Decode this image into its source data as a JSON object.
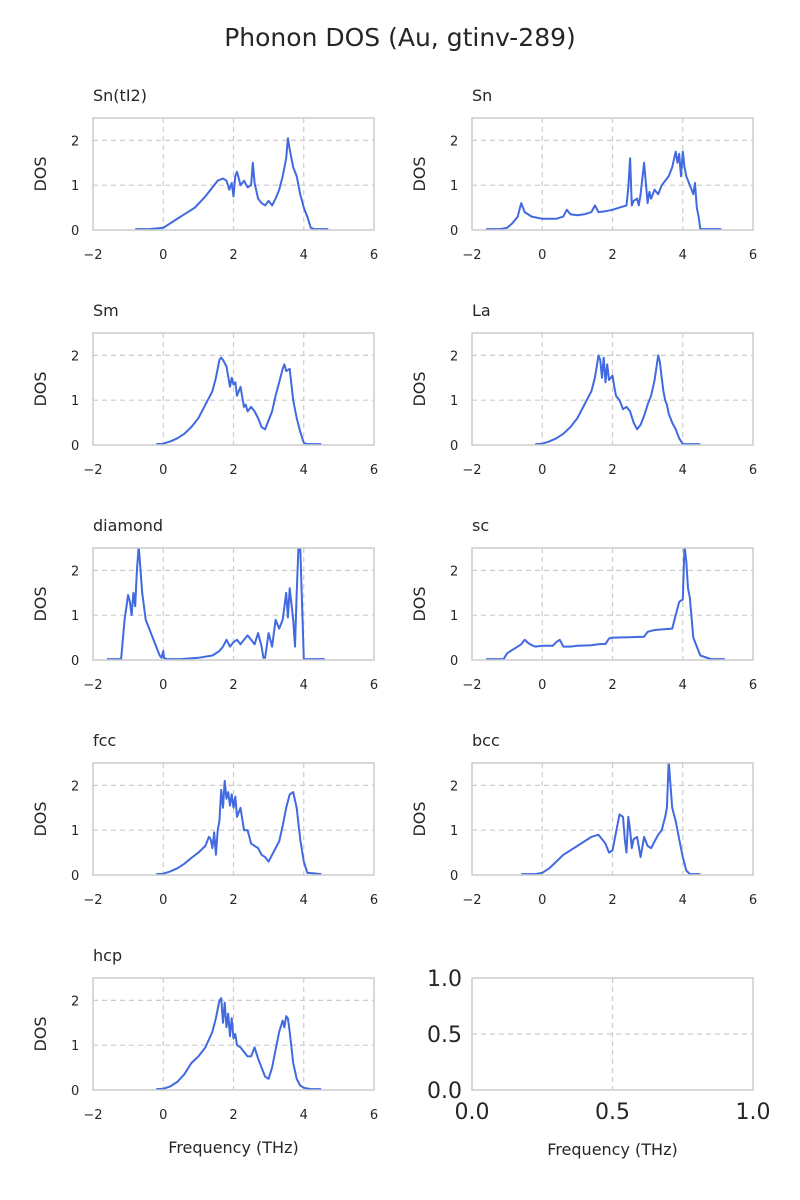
{
  "figure": {
    "title": "Phonon DOS (Au, gtinv-289)"
  },
  "colors": {
    "line": "#4169e1"
  },
  "chart_data": [
    {
      "type": "line",
      "title": "Sn(tI2)",
      "xlabel": "",
      "ylabel": "DOS",
      "xlim": [
        -2,
        6
      ],
      "ylim": [
        0,
        2.5
      ],
      "xticks": [
        -2,
        0,
        2,
        4,
        6
      ],
      "yticks": [
        0,
        1,
        2
      ],
      "grid": true,
      "series": [
        {
          "x": [
            -0.8,
            -0.4,
            0.0,
            0.3,
            0.6,
            0.9,
            1.2,
            1.4,
            1.55,
            1.7,
            1.8,
            1.88,
            1.95,
            2.0,
            2.05,
            2.1,
            2.15,
            2.2,
            2.3,
            2.4,
            2.5,
            2.55,
            2.6,
            2.7,
            2.8,
            2.9,
            3.0,
            3.1,
            3.2,
            3.3,
            3.4,
            3.5,
            3.55,
            3.6,
            3.65,
            3.7,
            3.8,
            3.9,
            4.0,
            4.1,
            4.2,
            4.3,
            4.5,
            4.7
          ],
          "y": [
            0.02,
            0.02,
            0.05,
            0.2,
            0.35,
            0.5,
            0.75,
            0.95,
            1.1,
            1.15,
            1.1,
            0.9,
            1.05,
            0.75,
            1.2,
            1.3,
            1.15,
            1.0,
            1.1,
            0.95,
            1.0,
            1.5,
            1.05,
            0.7,
            0.6,
            0.55,
            0.65,
            0.55,
            0.7,
            0.9,
            1.2,
            1.6,
            2.05,
            1.8,
            1.6,
            1.4,
            1.2,
            0.8,
            0.5,
            0.3,
            0.05,
            0.02,
            0.02,
            0.02
          ]
        }
      ]
    },
    {
      "type": "line",
      "title": "Sn",
      "xlabel": "",
      "ylabel": "DOS",
      "xlim": [
        -2,
        6
      ],
      "ylim": [
        0,
        2.5
      ],
      "xticks": [
        -2,
        0,
        2,
        4,
        6
      ],
      "yticks": [
        0,
        1,
        2
      ],
      "grid": true,
      "series": [
        {
          "x": [
            -1.6,
            -1.2,
            -1.0,
            -0.85,
            -0.7,
            -0.6,
            -0.5,
            -0.3,
            0.0,
            0.4,
            0.6,
            0.7,
            0.8,
            1.0,
            1.2,
            1.4,
            1.5,
            1.6,
            1.8,
            2.0,
            2.2,
            2.4,
            2.45,
            2.5,
            2.55,
            2.6,
            2.7,
            2.75,
            2.8,
            2.9,
            3.0,
            3.05,
            3.1,
            3.2,
            3.3,
            3.4,
            3.5,
            3.6,
            3.7,
            3.8,
            3.85,
            3.9,
            3.95,
            4.0,
            4.05,
            4.1,
            4.2,
            4.3,
            4.35,
            4.4,
            4.45,
            4.5,
            4.6,
            5.1
          ],
          "y": [
            0.02,
            0.02,
            0.05,
            0.15,
            0.3,
            0.6,
            0.4,
            0.3,
            0.25,
            0.25,
            0.3,
            0.45,
            0.35,
            0.33,
            0.35,
            0.4,
            0.55,
            0.4,
            0.42,
            0.45,
            0.5,
            0.55,
            0.95,
            1.6,
            0.55,
            0.65,
            0.7,
            0.55,
            0.8,
            1.5,
            0.6,
            0.85,
            0.7,
            0.9,
            0.8,
            1.0,
            1.1,
            1.2,
            1.4,
            1.75,
            1.5,
            1.7,
            1.2,
            1.75,
            1.4,
            1.2,
            1.0,
            0.8,
            1.05,
            0.5,
            0.3,
            0.02,
            0.02,
            0.02
          ]
        }
      ]
    },
    {
      "type": "line",
      "title": "Sm",
      "xlabel": "",
      "ylabel": "DOS",
      "xlim": [
        -2,
        6
      ],
      "ylim": [
        0,
        2.5
      ],
      "xticks": [
        -2,
        0,
        2,
        4,
        6
      ],
      "yticks": [
        0,
        1,
        2
      ],
      "grid": true,
      "series": [
        {
          "x": [
            -0.2,
            0.0,
            0.2,
            0.4,
            0.6,
            0.8,
            1.0,
            1.2,
            1.4,
            1.5,
            1.6,
            1.65,
            1.7,
            1.8,
            1.9,
            1.95,
            2.0,
            2.05,
            2.1,
            2.2,
            2.3,
            2.35,
            2.4,
            2.5,
            2.6,
            2.7,
            2.8,
            2.9,
            3.0,
            3.1,
            3.2,
            3.3,
            3.4,
            3.45,
            3.5,
            3.6,
            3.7,
            3.8,
            3.9,
            4.0,
            4.1,
            4.5
          ],
          "y": [
            0.02,
            0.03,
            0.08,
            0.15,
            0.25,
            0.4,
            0.6,
            0.9,
            1.2,
            1.5,
            1.9,
            1.95,
            1.9,
            1.75,
            1.3,
            1.5,
            1.35,
            1.4,
            1.1,
            1.3,
            0.85,
            0.9,
            0.75,
            0.85,
            0.75,
            0.6,
            0.4,
            0.35,
            0.55,
            0.75,
            1.1,
            1.4,
            1.7,
            1.8,
            1.65,
            1.7,
            1.0,
            0.6,
            0.3,
            0.05,
            0.02,
            0.02
          ]
        }
      ]
    },
    {
      "type": "line",
      "title": "La",
      "xlabel": "",
      "ylabel": "DOS",
      "xlim": [
        -2,
        6
      ],
      "ylim": [
        0,
        2.5
      ],
      "xticks": [
        -2,
        0,
        2,
        4,
        6
      ],
      "yticks": [
        0,
        1,
        2
      ],
      "grid": true,
      "series": [
        {
          "x": [
            -0.2,
            0.0,
            0.2,
            0.4,
            0.6,
            0.8,
            1.0,
            1.2,
            1.4,
            1.5,
            1.6,
            1.65,
            1.7,
            1.75,
            1.8,
            1.85,
            1.9,
            2.0,
            2.05,
            2.1,
            2.2,
            2.3,
            2.4,
            2.5,
            2.6,
            2.7,
            2.8,
            2.9,
            3.0,
            3.1,
            3.2,
            3.3,
            3.35,
            3.4,
            3.45,
            3.5,
            3.55,
            3.6,
            3.7,
            3.8,
            3.9,
            4.0,
            4.1,
            4.5
          ],
          "y": [
            0.02,
            0.03,
            0.08,
            0.15,
            0.25,
            0.4,
            0.6,
            0.9,
            1.2,
            1.5,
            2.0,
            1.9,
            1.5,
            1.95,
            1.4,
            1.8,
            1.45,
            1.55,
            1.3,
            1.1,
            1.0,
            0.8,
            0.85,
            0.75,
            0.5,
            0.35,
            0.45,
            0.65,
            0.9,
            1.1,
            1.45,
            2.0,
            1.85,
            1.5,
            1.2,
            1.0,
            0.9,
            0.7,
            0.5,
            0.35,
            0.15,
            0.02,
            0.02,
            0.02
          ]
        }
      ]
    },
    {
      "type": "line",
      "title": "diamond",
      "xlabel": "",
      "ylabel": "DOS",
      "xlim": [
        -2,
        6
      ],
      "ylim": [
        0,
        2.5
      ],
      "xticks": [
        -2,
        0,
        2,
        4,
        6
      ],
      "yticks": [
        0,
        1,
        2
      ],
      "grid": true,
      "series": [
        {
          "x": [
            -1.6,
            -1.2,
            -1.1,
            -1.0,
            -0.95,
            -0.9,
            -0.85,
            -0.8,
            -0.75,
            -0.7,
            -0.6,
            -0.5,
            -0.4,
            -0.3,
            -0.2,
            -0.1,
            -0.05,
            0.0,
            0.02,
            0.1,
            0.5,
            1.0,
            1.4,
            1.6,
            1.7,
            1.8,
            1.9,
            2.0,
            2.1,
            2.2,
            2.3,
            2.4,
            2.5,
            2.6,
            2.7,
            2.8,
            2.85,
            2.9,
            3.0,
            3.1,
            3.2,
            3.3,
            3.4,
            3.5,
            3.55,
            3.6,
            3.7,
            3.75,
            3.8,
            3.85,
            3.9,
            4.0,
            4.1,
            4.2,
            4.6
          ],
          "y": [
            0.02,
            0.02,
            0.9,
            1.45,
            1.3,
            1.0,
            1.5,
            1.2,
            2.0,
            2.6,
            1.5,
            0.9,
            0.7,
            0.5,
            0.3,
            0.1,
            0.05,
            0.2,
            0.05,
            0.02,
            0.02,
            0.05,
            0.1,
            0.2,
            0.3,
            0.45,
            0.3,
            0.4,
            0.45,
            0.35,
            0.45,
            0.55,
            0.45,
            0.35,
            0.6,
            0.3,
            0.05,
            0.05,
            0.6,
            0.3,
            0.9,
            0.7,
            0.9,
            1.5,
            0.95,
            1.6,
            0.9,
            0.3,
            1.5,
            2.6,
            2.6,
            0.02,
            0.02,
            0.02,
            0.02
          ]
        }
      ]
    },
    {
      "type": "line",
      "title": "sc",
      "xlabel": "",
      "ylabel": "DOS",
      "xlim": [
        -2,
        6
      ],
      "ylim": [
        0,
        2.5
      ],
      "xticks": [
        -2,
        0,
        2,
        4,
        6
      ],
      "yticks": [
        0,
        1,
        2
      ],
      "grid": true,
      "series": [
        {
          "x": [
            -1.6,
            -1.1,
            -1.0,
            -0.8,
            -0.6,
            -0.5,
            -0.4,
            -0.3,
            -0.2,
            0.0,
            0.3,
            0.4,
            0.5,
            0.6,
            0.8,
            1.0,
            1.4,
            1.6,
            1.8,
            1.9,
            2.0,
            2.5,
            2.9,
            3.0,
            3.2,
            3.7,
            3.8,
            3.9,
            4.0,
            4.05,
            4.1,
            4.15,
            4.2,
            4.3,
            4.5,
            4.8,
            5.2
          ],
          "y": [
            0.02,
            0.02,
            0.15,
            0.25,
            0.35,
            0.45,
            0.38,
            0.33,
            0.3,
            0.32,
            0.32,
            0.4,
            0.45,
            0.3,
            0.3,
            0.32,
            0.33,
            0.35,
            0.36,
            0.48,
            0.5,
            0.51,
            0.52,
            0.63,
            0.67,
            0.7,
            1.0,
            1.3,
            1.35,
            2.6,
            2.2,
            1.6,
            1.4,
            0.5,
            0.1,
            0.02,
            0.02
          ]
        }
      ]
    },
    {
      "type": "line",
      "title": "fcc",
      "xlabel": "",
      "ylabel": "DOS",
      "xlim": [
        -2,
        6
      ],
      "ylim": [
        0,
        2.5
      ],
      "xticks": [
        -2,
        0,
        2,
        4,
        6
      ],
      "yticks": [
        0,
        1,
        2
      ],
      "grid": true,
      "series": [
        {
          "x": [
            -0.2,
            0.0,
            0.2,
            0.4,
            0.6,
            0.8,
            1.0,
            1.2,
            1.3,
            1.35,
            1.4,
            1.45,
            1.5,
            1.55,
            1.6,
            1.65,
            1.7,
            1.75,
            1.8,
            1.85,
            1.9,
            1.95,
            2.0,
            2.05,
            2.1,
            2.2,
            2.3,
            2.4,
            2.5,
            2.6,
            2.7,
            2.8,
            2.9,
            3.0,
            3.1,
            3.2,
            3.3,
            3.4,
            3.5,
            3.6,
            3.7,
            3.8,
            3.9,
            4.0,
            4.1,
            4.5
          ],
          "y": [
            0.02,
            0.03,
            0.08,
            0.15,
            0.25,
            0.38,
            0.5,
            0.65,
            0.85,
            0.8,
            0.6,
            0.95,
            0.45,
            1.0,
            1.2,
            1.9,
            1.5,
            2.1,
            1.7,
            1.85,
            1.55,
            1.8,
            1.5,
            1.75,
            1.3,
            1.5,
            1.0,
            1.0,
            0.7,
            0.65,
            0.6,
            0.45,
            0.4,
            0.3,
            0.45,
            0.6,
            0.75,
            1.1,
            1.5,
            1.8,
            1.85,
            1.5,
            0.8,
            0.3,
            0.05,
            0.02
          ]
        }
      ]
    },
    {
      "type": "line",
      "title": "bcc",
      "xlabel": "",
      "ylabel": "DOS",
      "xlim": [
        -2,
        6
      ],
      "ylim": [
        0,
        2.5
      ],
      "xticks": [
        -2,
        0,
        2,
        4,
        6
      ],
      "yticks": [
        0,
        1,
        2
      ],
      "grid": true,
      "series": [
        {
          "x": [
            -0.6,
            -0.2,
            0.0,
            0.2,
            0.4,
            0.6,
            0.8,
            1.0,
            1.2,
            1.4,
            1.6,
            1.8,
            1.9,
            2.0,
            2.1,
            2.2,
            2.3,
            2.35,
            2.4,
            2.45,
            2.5,
            2.55,
            2.6,
            2.7,
            2.8,
            2.9,
            3.0,
            3.1,
            3.2,
            3.3,
            3.4,
            3.5,
            3.55,
            3.6,
            3.65,
            3.7,
            3.8,
            3.9,
            4.0,
            4.1,
            4.2,
            4.5
          ],
          "y": [
            0.02,
            0.02,
            0.05,
            0.15,
            0.3,
            0.45,
            0.55,
            0.65,
            0.75,
            0.85,
            0.9,
            0.7,
            0.5,
            0.55,
            0.95,
            1.35,
            1.3,
            0.8,
            0.5,
            1.3,
            1.0,
            0.6,
            0.8,
            0.85,
            0.4,
            0.85,
            0.65,
            0.6,
            0.75,
            0.9,
            1.0,
            1.3,
            1.5,
            2.6,
            2.0,
            1.5,
            1.2,
            0.8,
            0.4,
            0.1,
            0.02,
            0.02
          ]
        }
      ]
    },
    {
      "type": "line",
      "title": "hcp",
      "xlabel": "Frequency (THz)",
      "ylabel": "DOS",
      "xlim": [
        -2,
        6
      ],
      "ylim": [
        0,
        2.5
      ],
      "xticks": [
        -2,
        0,
        2,
        4,
        6
      ],
      "yticks": [
        0,
        1,
        2
      ],
      "grid": true,
      "series": [
        {
          "x": [
            -0.2,
            0.0,
            0.2,
            0.4,
            0.6,
            0.8,
            1.0,
            1.2,
            1.4,
            1.5,
            1.6,
            1.65,
            1.7,
            1.75,
            1.8,
            1.85,
            1.9,
            1.95,
            2.0,
            2.05,
            2.1,
            2.2,
            2.3,
            2.4,
            2.5,
            2.6,
            2.7,
            2.8,
            2.9,
            3.0,
            3.1,
            3.2,
            3.3,
            3.4,
            3.45,
            3.5,
            3.55,
            3.6,
            3.7,
            3.8,
            3.9,
            4.0,
            4.2,
            4.5
          ],
          "y": [
            0.02,
            0.03,
            0.08,
            0.18,
            0.35,
            0.6,
            0.75,
            0.95,
            1.3,
            1.6,
            2.0,
            2.05,
            1.5,
            1.95,
            1.4,
            1.7,
            1.2,
            1.6,
            1.15,
            1.25,
            1.0,
            0.95,
            0.85,
            0.75,
            0.75,
            0.95,
            0.7,
            0.5,
            0.3,
            0.25,
            0.5,
            0.9,
            1.3,
            1.55,
            1.4,
            1.65,
            1.6,
            1.3,
            0.6,
            0.25,
            0.1,
            0.05,
            0.02,
            0.02
          ]
        }
      ]
    },
    {
      "type": "line",
      "title": "",
      "xlabel": "Frequency (THz)",
      "ylabel": "",
      "xlim": [
        0,
        1
      ],
      "ylim": [
        0,
        1
      ],
      "xticks": [
        "0.0",
        "0.5",
        "1.0"
      ],
      "yticks": [
        "0.0",
        "0.5",
        "1.0"
      ],
      "grid": true,
      "series": []
    }
  ]
}
